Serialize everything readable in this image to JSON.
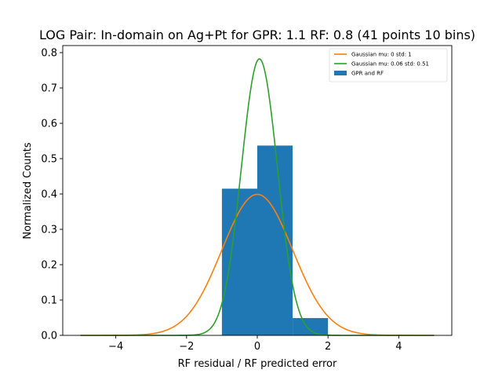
{
  "chart_data": {
    "type": "bar",
    "title": "LOG Pair: In-domain on Ag+Pt for GPR: 1.1 RF: 0.8 (41 points 10 bins)",
    "xlabel": "RF residual / RF predicted error",
    "ylabel": "Normalized Counts",
    "xlim": [
      -5.5,
      5.5
    ],
    "ylim": [
      0,
      0.82
    ],
    "x_ticks": [
      -4,
      -2,
      0,
      2,
      4
    ],
    "x_tick_labels": [
      "−4",
      "−2",
      "0",
      "2",
      "4"
    ],
    "y_ticks": [
      0.0,
      0.1,
      0.2,
      0.3,
      0.4,
      0.5,
      0.6,
      0.7,
      0.8
    ],
    "y_tick_labels": [
      "0.0",
      "0.1",
      "0.2",
      "0.3",
      "0.4",
      "0.5",
      "0.6",
      "0.7",
      "0.8"
    ],
    "grid": false,
    "legend_position": "top-right",
    "histogram": {
      "name": "GPR and RF",
      "color": "#1f77b4",
      "bins": [
        {
          "x0": -1,
          "x1": 0,
          "value": 0.415
        },
        {
          "x0": 0,
          "x1": 1,
          "value": 0.537
        },
        {
          "x0": 1,
          "x1": 2,
          "value": 0.049
        }
      ]
    },
    "curves": [
      {
        "name": "Gaussian mu: 0 std: 1",
        "mu": 0,
        "sigma": 1,
        "color": "#ff7f0e",
        "x_range": [
          -5,
          5
        ]
      },
      {
        "name": "Gaussian mu: 0.06 std: 0.51",
        "mu": 0.06,
        "sigma": 0.51,
        "color": "#2ca02c",
        "x_range": [
          -5,
          5
        ]
      }
    ]
  }
}
